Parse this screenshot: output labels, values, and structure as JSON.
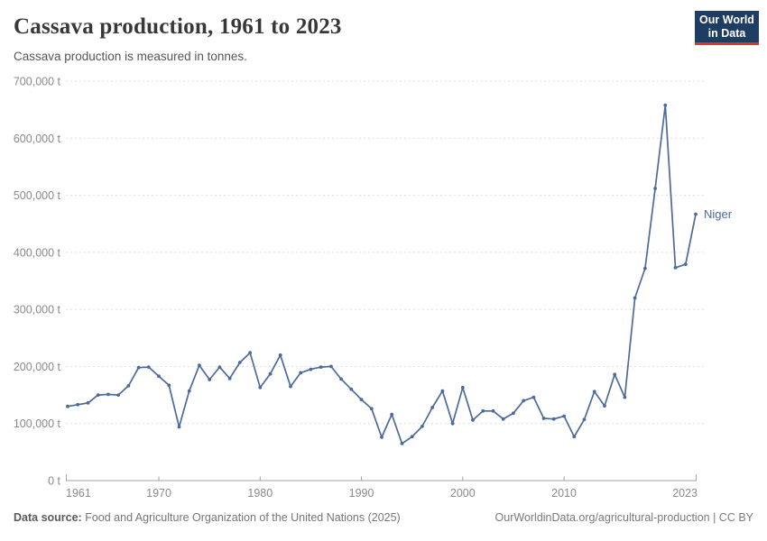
{
  "header": {
    "title": "Cassava production, 1961 to 2023",
    "subtitle": "Cassava production is measured in tonnes."
  },
  "logo": {
    "line1": "Our World",
    "line2": "in Data",
    "bg_color": "#1d3d63",
    "accent_color": "#dc352a"
  },
  "chart_data": {
    "type": "line",
    "title": "Cassava production, 1961 to 2023",
    "subtitle": "Cassava production is measured in tonnes.",
    "unit": "t",
    "xlabel": "",
    "ylabel": "",
    "xlim": [
      1961,
      2023
    ],
    "ylim": [
      0,
      700000
    ],
    "grid": "horizontal-dashed",
    "legend_position": "end-of-line-label",
    "axis_color": "#a3a3a3",
    "gridline_color": "#dedede",
    "tick_label_color": "#8a8a8a",
    "xticks": [
      1961,
      1970,
      1980,
      1990,
      2000,
      2010,
      2023
    ],
    "yticks": [
      0,
      100000,
      200000,
      300000,
      400000,
      500000,
      600000,
      700000
    ],
    "ytick_labels": [
      "0 t",
      "100,000 t",
      "200,000 t",
      "300,000 t",
      "400,000 t",
      "500,000 t",
      "600,000 t",
      "700,000 t"
    ],
    "series": [
      {
        "name": "Niger",
        "color": "#4C6A9C",
        "x": [
          1961,
          1962,
          1963,
          1964,
          1965,
          1966,
          1967,
          1968,
          1969,
          1970,
          1971,
          1972,
          1973,
          1974,
          1975,
          1976,
          1977,
          1978,
          1979,
          1980,
          1981,
          1982,
          1983,
          1984,
          1985,
          1986,
          1987,
          1988,
          1989,
          1990,
          1991,
          1992,
          1993,
          1994,
          1995,
          1996,
          1997,
          1998,
          1999,
          2000,
          2001,
          2002,
          2003,
          2004,
          2005,
          2006,
          2007,
          2008,
          2009,
          2010,
          2011,
          2012,
          2013,
          2014,
          2015,
          2016,
          2017,
          2018,
          2019,
          2020,
          2021,
          2022,
          2023
        ],
        "values": [
          130000,
          133000,
          136000,
          150000,
          151000,
          150000,
          166000,
          198000,
          199000,
          183000,
          167000,
          94000,
          157000,
          202000,
          177000,
          199000,
          179000,
          207000,
          224000,
          163000,
          187000,
          220000,
          165000,
          189000,
          195000,
          199000,
          200000,
          178000,
          160000,
          142000,
          126000,
          76000,
          116000,
          65000,
          77000,
          95000,
          128000,
          157000,
          100000,
          163000,
          106000,
          122000,
          122000,
          108000,
          118000,
          140000,
          146000,
          109000,
          108000,
          113000,
          77000,
          107000,
          156000,
          131000,
          186000,
          146000,
          320000,
          372000,
          512000,
          658000,
          373000,
          379000,
          467000
        ]
      }
    ]
  },
  "footer": {
    "datasource_label": "Data source:",
    "datasource_text": " Food and Agriculture Organization of the United Nations (2025)",
    "credit": "OurWorldinData.org/agricultural-production | CC BY"
  }
}
